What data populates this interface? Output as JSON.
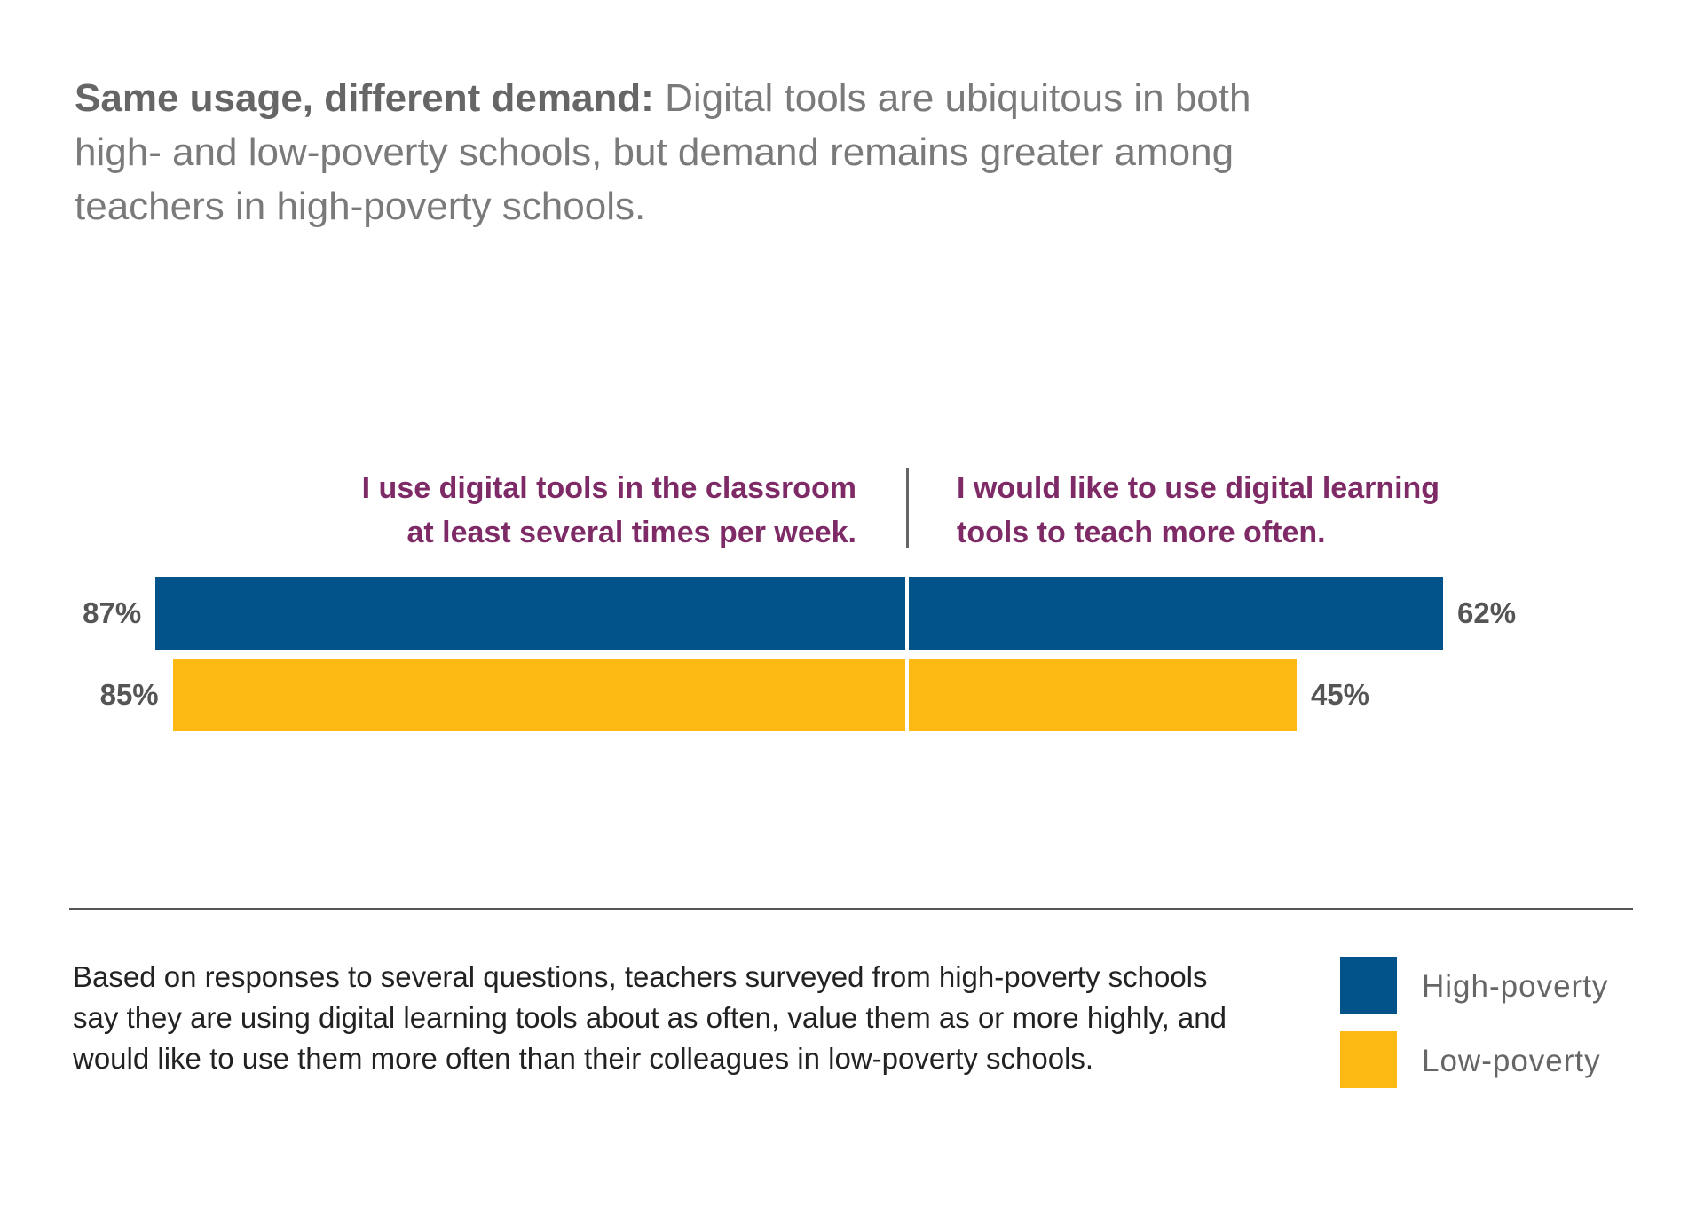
{
  "headline": {
    "lead": "Same usage, different demand:",
    "text": "Digital tools are ubiquitous in both high- and low-poverty schools, but demand remains greater among teachers in high-poverty schools."
  },
  "colors": {
    "high_poverty": "#02538a",
    "low_poverty": "#fcb813",
    "question_label": "#7e2a66"
  },
  "chart_data": {
    "type": "bar",
    "orientation": "horizontal-diverging",
    "categories": [
      "I use digital tools in the classroom at least several times per week.",
      "I would like to use digital learning tools to teach more often."
    ],
    "series": [
      {
        "name": "High-poverty",
        "values": [
          87,
          62
        ],
        "labels": [
          "87%",
          "62%"
        ]
      },
      {
        "name": "Low-poverty",
        "values": [
          85,
          45
        ],
        "labels": [
          "85%",
          "45%"
        ]
      }
    ],
    "question_lines": [
      [
        "I use digital tools in the classroom",
        "at least several times per week."
      ],
      [
        "I would like to use digital learning",
        "tools to teach more often."
      ]
    ],
    "unit": "%",
    "legend_position": "bottom-right"
  },
  "note": "Based on responses to several questions, teachers surveyed from high-poverty schools say they are using digital learning tools about as often, value them as or more highly, and would like to use them more often than their colleagues in low-poverty schools.",
  "legend": [
    {
      "label": "High-poverty"
    },
    {
      "label": "Low-poverty"
    }
  ]
}
